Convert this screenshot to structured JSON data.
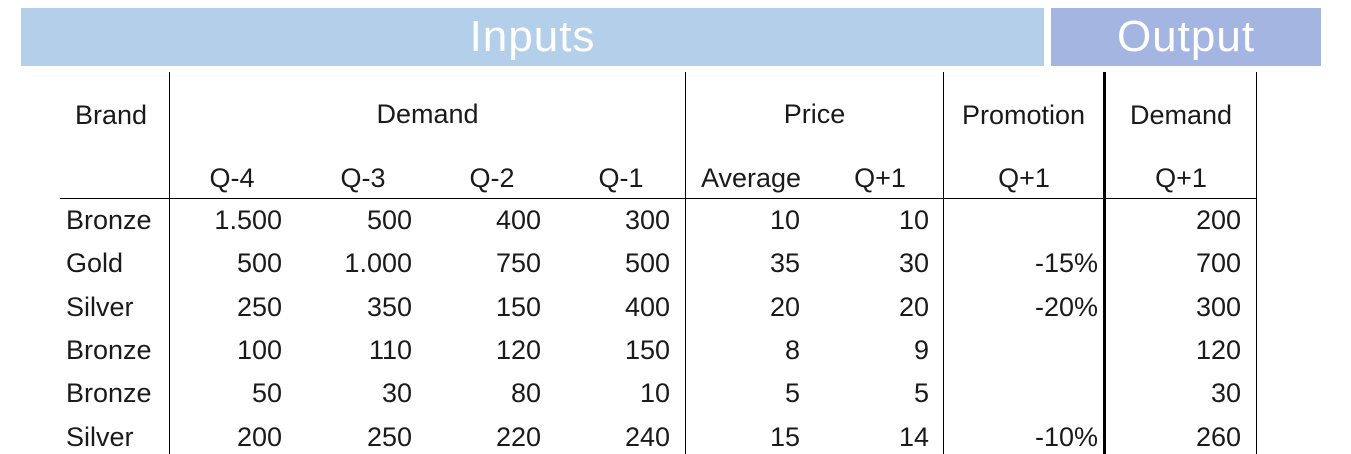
{
  "banners": {
    "inputs": "Inputs",
    "output": "Output"
  },
  "headers": {
    "brand": "Brand",
    "demand": "Demand",
    "price": "Price",
    "promotion": "Promotion",
    "output_demand": "Demand",
    "sub": [
      "Q-4",
      "Q-3",
      "Q-2",
      "Q-1",
      "Average",
      "Q+1",
      "Q+1",
      "Q+1"
    ]
  },
  "rows": [
    {
      "brand": "Bronze",
      "cells": [
        "1.500",
        "500",
        "400",
        "300",
        "10",
        "10",
        "",
        "200"
      ]
    },
    {
      "brand": "Gold",
      "cells": [
        "500",
        "1.000",
        "750",
        "500",
        "35",
        "30",
        "-15%",
        "700"
      ]
    },
    {
      "brand": "Silver",
      "cells": [
        "250",
        "350",
        "150",
        "400",
        "20",
        "20",
        "-20%",
        "300"
      ]
    },
    {
      "brand": "Bronze",
      "cells": [
        "100",
        "110",
        "120",
        "150",
        "8",
        "9",
        "",
        "120"
      ]
    },
    {
      "brand": "Bronze",
      "cells": [
        "50",
        "30",
        "80",
        "10",
        "5",
        "5",
        "",
        "30"
      ]
    },
    {
      "brand": "Silver",
      "cells": [
        "200",
        "250",
        "220",
        "240",
        "15",
        "14",
        "-10%",
        "260"
      ]
    }
  ]
}
